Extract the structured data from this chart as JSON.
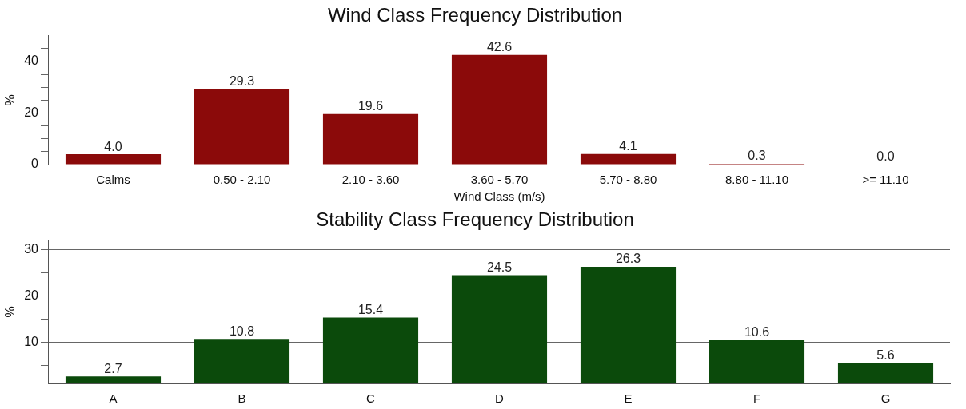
{
  "chart_data": [
    {
      "type": "bar",
      "title": "Wind Class Frequency Distribution",
      "xlabel": "Wind Class (m/s)",
      "ylabel": "%",
      "categories": [
        "Calms",
        "0.50 - 2.10",
        "2.10 - 3.60",
        "3.60 - 5.70",
        "5.70 - 8.80",
        "8.80 - 11.10",
        ">= 11.10"
      ],
      "values": [
        4.0,
        29.3,
        19.6,
        42.6,
        4.1,
        0.3,
        0.0
      ],
      "value_labels": [
        "4.0",
        "29.3",
        "19.6",
        "42.6",
        "4.1",
        "0.3",
        "0.0"
      ],
      "color": "#8b0a0a",
      "ylim": [
        0,
        50
      ],
      "yticks": [
        0,
        {
          "value": 5,
          "label": null
        },
        {
          "value": 10,
          "label": null
        },
        {
          "value": 15,
          "label": null
        },
        20,
        {
          "value": 25,
          "label": null
        },
        {
          "value": 30,
          "label": null
        },
        {
          "value": 35,
          "label": null
        },
        40,
        {
          "value": 45,
          "label": null
        }
      ],
      "grid": "y",
      "legend": false
    },
    {
      "type": "bar",
      "title": "Stability Class Frequency Distribution",
      "ylabel": "%",
      "categories": [
        "A",
        "B",
        "C",
        "D",
        "E",
        "F",
        "G"
      ],
      "values": [
        2.7,
        10.8,
        15.4,
        24.5,
        26.3,
        10.6,
        5.6
      ],
      "value_labels": [
        "2.7",
        "10.8",
        "15.4",
        "24.5",
        "26.3",
        "10.6",
        "5.6"
      ],
      "color": "#0b4a0b",
      "ylim": [
        1.2,
        32
      ],
      "yticks": [
        {
          "value": 5,
          "label": null
        },
        10,
        {
          "value": 15,
          "label": null
        },
        20,
        {
          "value": 25,
          "label": null
        },
        30
      ],
      "grid": "y",
      "legend": false
    }
  ]
}
